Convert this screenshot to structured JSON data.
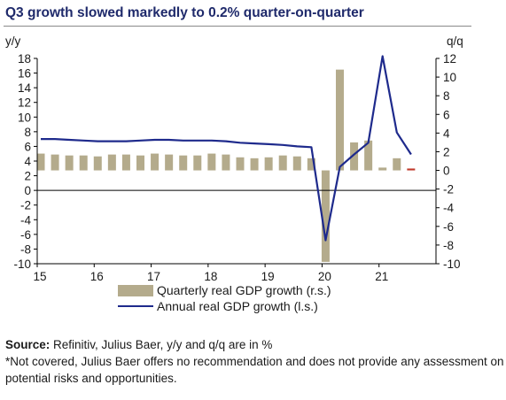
{
  "title": "Q3 growth slowed markedly to 0.2% quarter-on-quarter",
  "legend": {
    "bars_label": "Quarterly real GDP growth (r.s.)",
    "line_label": "Annual real GDP growth (l.s.)"
  },
  "footer": {
    "source_label": "Source:",
    "source_text": " Refinitiv, Julius Baer, y/y and q/q are in %",
    "disclaimer": "*Not covered, Julius Baer offers no recommendation and does not provide any assessment on potential risks and opportunities."
  },
  "colors": {
    "bars": "#b4ab8c",
    "line": "#1e2a8c",
    "highlight_bar": "#c0392b",
    "title": "#1f2a6b"
  },
  "chart_data": {
    "type": "bar+line",
    "title": "Q3 growth slowed markedly to 0.2% quarter-on-quarter",
    "left_axis": {
      "label": "y/y",
      "ticks": [
        "18",
        "16",
        "14",
        "12",
        "10",
        "8",
        "6",
        "4",
        "2",
        "0",
        "-2",
        "-4",
        "-6",
        "-8",
        "-10"
      ],
      "ylim": [
        -10,
        18
      ]
    },
    "right_axis": {
      "label": "q/q",
      "ticks": [
        "12",
        "10",
        "8",
        "6",
        "4",
        "2",
        "0",
        "-2",
        "-4",
        "-6",
        "-8",
        "-10"
      ],
      "ylim": [
        -10,
        12
      ]
    },
    "x_tick_labels": [
      "15",
      "16",
      "17",
      "18",
      "19",
      "20",
      "21"
    ],
    "x_ticks_value": [
      2015,
      2016,
      2017,
      2018,
      2019,
      2020,
      2021
    ],
    "xlim": [
      2015,
      2022
    ],
    "series": [
      {
        "name": "Quarterly real GDP growth (r.s.)",
        "kind": "bar",
        "axis": "right",
        "points": [
          [
            2015.0,
            1.8
          ],
          [
            2015.25,
            1.7
          ],
          [
            2015.5,
            1.6
          ],
          [
            2015.75,
            1.6
          ],
          [
            2016.0,
            1.5
          ],
          [
            2016.25,
            1.7
          ],
          [
            2016.5,
            1.7
          ],
          [
            2016.75,
            1.6
          ],
          [
            2017.0,
            1.8
          ],
          [
            2017.25,
            1.7
          ],
          [
            2017.5,
            1.6
          ],
          [
            2017.75,
            1.6
          ],
          [
            2018.0,
            1.8
          ],
          [
            2018.25,
            1.7
          ],
          [
            2018.5,
            1.4
          ],
          [
            2018.75,
            1.3
          ],
          [
            2019.0,
            1.4
          ],
          [
            2019.25,
            1.6
          ],
          [
            2019.5,
            1.5
          ],
          [
            2019.75,
            1.3
          ],
          [
            2020.0,
            -9.8
          ],
          [
            2020.25,
            10.8
          ],
          [
            2020.5,
            3.0
          ],
          [
            2020.75,
            3.2
          ],
          [
            2021.0,
            0.3
          ],
          [
            2021.25,
            1.3
          ],
          [
            2021.5,
            0.2
          ]
        ]
      },
      {
        "name": "Annual real GDP growth (l.s.)",
        "kind": "line",
        "axis": "left",
        "points": [
          [
            2015.0,
            7.0
          ],
          [
            2015.25,
            7.0
          ],
          [
            2015.5,
            6.9
          ],
          [
            2015.75,
            6.8
          ],
          [
            2016.0,
            6.7
          ],
          [
            2016.25,
            6.7
          ],
          [
            2016.5,
            6.7
          ],
          [
            2016.75,
            6.8
          ],
          [
            2017.0,
            6.9
          ],
          [
            2017.25,
            6.9
          ],
          [
            2017.5,
            6.8
          ],
          [
            2017.75,
            6.8
          ],
          [
            2018.0,
            6.8
          ],
          [
            2018.25,
            6.7
          ],
          [
            2018.5,
            6.5
          ],
          [
            2018.75,
            6.4
          ],
          [
            2019.0,
            6.3
          ],
          [
            2019.25,
            6.2
          ],
          [
            2019.5,
            6.0
          ],
          [
            2019.75,
            5.9
          ],
          [
            2020.0,
            -6.8
          ],
          [
            2020.25,
            3.2
          ],
          [
            2020.5,
            4.9
          ],
          [
            2020.75,
            6.5
          ],
          [
            2021.0,
            18.3
          ],
          [
            2021.25,
            7.9
          ],
          [
            2021.5,
            4.9
          ]
        ]
      }
    ],
    "highlight_last_bar": true,
    "grid": false,
    "legend_position": "bottom"
  }
}
